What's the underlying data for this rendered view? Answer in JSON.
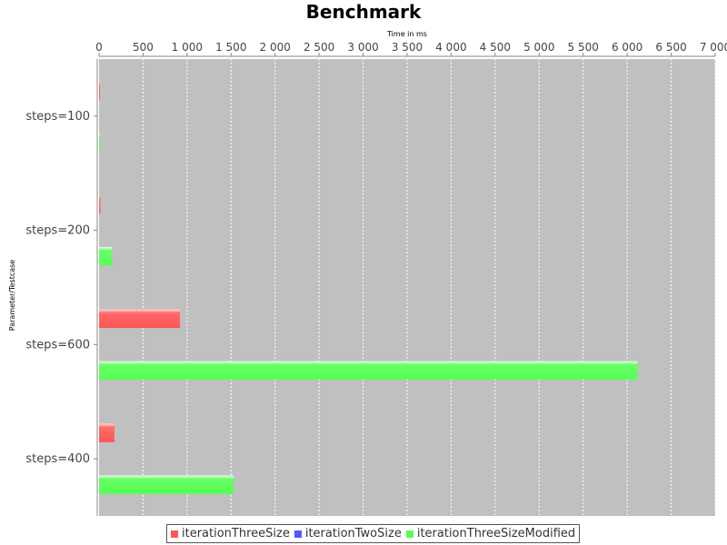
{
  "chart_data": {
    "type": "bar",
    "orientation": "horizontal",
    "title": "Benchmark",
    "xlabel": "Time in ms",
    "ylabel": "Parameter/Testcase",
    "xlim": [
      0,
      7000
    ],
    "xticks": [
      0,
      500,
      1000,
      1500,
      2000,
      2500,
      3000,
      3500,
      4000,
      4500,
      5000,
      5500,
      6000,
      6500,
      7000
    ],
    "xtick_labels": [
      "0",
      "500",
      "1 000",
      "1 500",
      "2 000",
      "2 500",
      "3 000",
      "3 500",
      "4 000",
      "4 500",
      "5 000",
      "5 500",
      "6 000",
      "6 500",
      "7 000"
    ],
    "x_axis_position": "top",
    "grid": true,
    "legend_position": "bottom",
    "categories": [
      "steps=100",
      "steps=200",
      "steps=600",
      "steps=400"
    ],
    "series": [
      {
        "name": "iterationThreeSize",
        "color": "#ff5555",
        "values": [
          2,
          15,
          920,
          175
        ]
      },
      {
        "name": "iterationTwoSize",
        "color": "#5555ff",
        "values": [
          0,
          0,
          0,
          0
        ]
      },
      {
        "name": "iterationThreeSizeModified",
        "color": "#55ff55",
        "values": [
          3,
          150,
          6120,
          1530
        ]
      }
    ]
  }
}
